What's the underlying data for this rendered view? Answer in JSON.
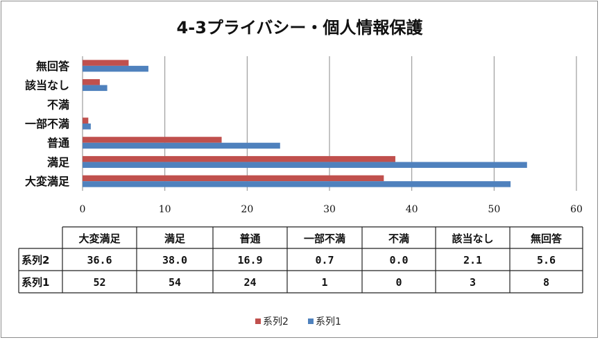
{
  "chart_data": {
    "type": "bar",
    "orientation": "horizontal",
    "title": "4-3プライバシー・個人情報保護",
    "categories": [
      "大変満足",
      "満足",
      "普通",
      "一部不満",
      "不満",
      "該当なし",
      "無回答"
    ],
    "series": [
      {
        "name": "系列2",
        "color": "#c0504d",
        "values": [
          36.6,
          38.0,
          16.9,
          0.7,
          0.0,
          2.1,
          5.6
        ],
        "labels": [
          "36.6",
          "38.0",
          "16.9",
          "0.7",
          "0.0",
          "2.1",
          "5.6"
        ]
      },
      {
        "name": "系列1",
        "color": "#4f81bd",
        "values": [
          52,
          54,
          24,
          1,
          0,
          3,
          8
        ],
        "labels": [
          "52",
          "54",
          "24",
          "1",
          "0",
          "3",
          "8"
        ]
      }
    ],
    "xlim": [
      0,
      60
    ],
    "xticks": [
      "0",
      "10",
      "20",
      "30",
      "40",
      "50",
      "60"
    ],
    "grid": true,
    "legend": "bottom",
    "data_table": true
  }
}
